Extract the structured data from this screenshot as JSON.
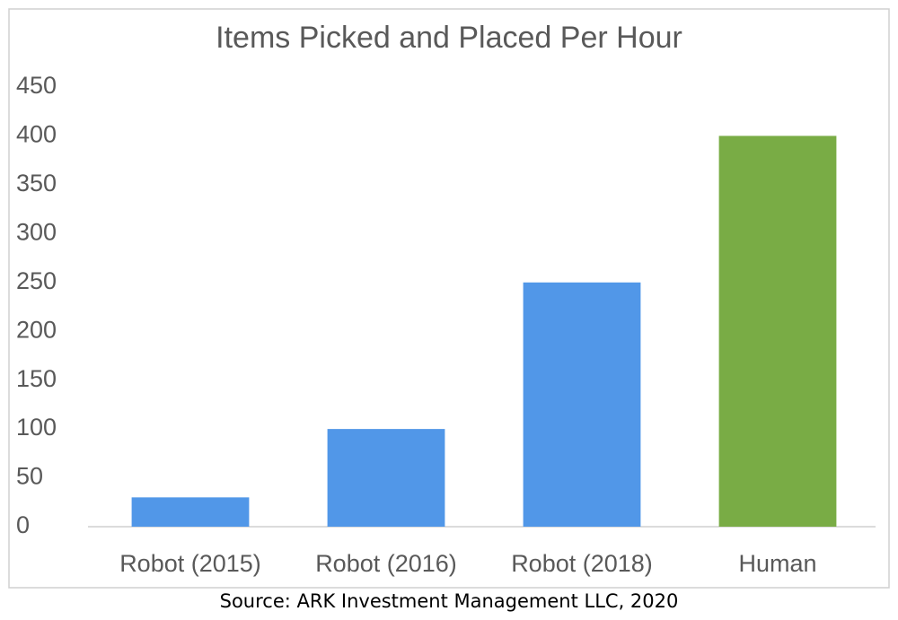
{
  "chart_data": {
    "type": "bar",
    "title": "Items Picked and Placed Per Hour",
    "categories": [
      "Robot (2015)",
      "Robot (2016)",
      "Robot (2018)",
      "Human"
    ],
    "values": [
      30,
      100,
      250,
      400
    ],
    "colors": [
      "#5197e8",
      "#5197e8",
      "#5197e8",
      "#79ac45"
    ],
    "ylim": [
      0,
      450
    ],
    "yticks": [
      0,
      50,
      100,
      150,
      200,
      250,
      300,
      350,
      400,
      450
    ],
    "grid": false,
    "source": "Source: ARK Investment Management LLC, 2020"
  }
}
